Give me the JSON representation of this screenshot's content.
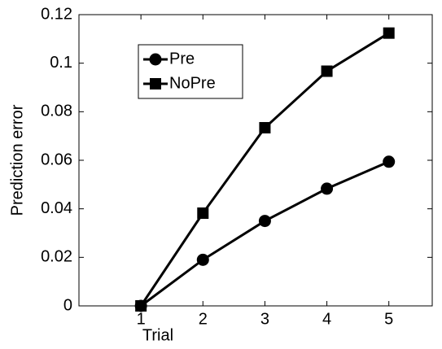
{
  "chart_data": {
    "type": "line",
    "xlabel": "Trial",
    "ylabel": "Prediction error",
    "x": [
      1,
      2,
      3,
      4,
      5
    ],
    "series": [
      {
        "name": "Pre",
        "color": "#000000",
        "marker": "circle",
        "values": [
          0,
          0.019,
          0.035,
          0.0483,
          0.0594
        ]
      },
      {
        "name": "NoPre",
        "color": "#000000",
        "marker": "square",
        "values": [
          0,
          0.0382,
          0.0734,
          0.0967,
          0.1124
        ]
      }
    ],
    "xlim": [
      0,
      5.7
    ],
    "xticks": [
      1,
      2,
      3,
      4,
      5
    ],
    "ylim": [
      0,
      0.12
    ],
    "yticks": [
      0,
      0.02,
      0.04,
      0.06,
      0.08,
      0.1,
      0.12
    ],
    "grid": false,
    "legend": "upper left"
  }
}
